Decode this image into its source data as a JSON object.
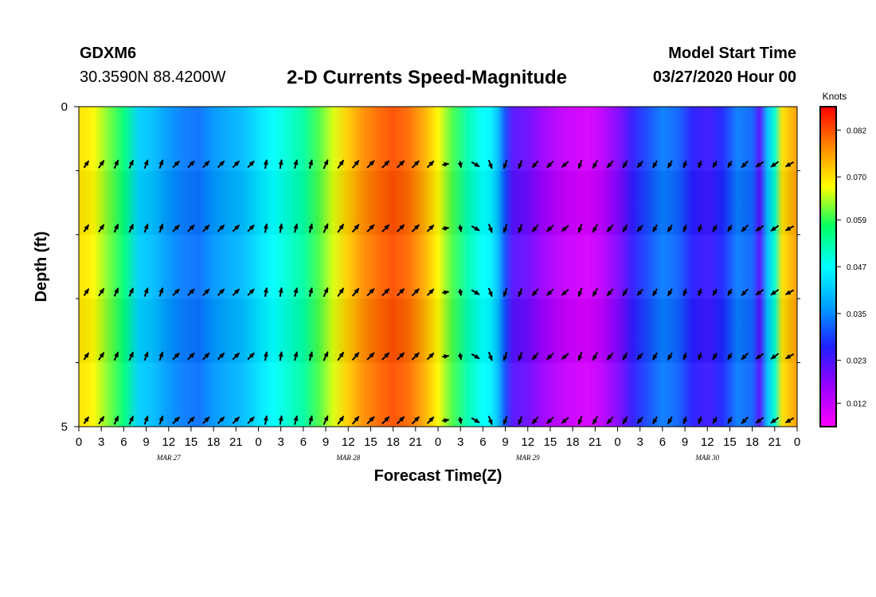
{
  "header": {
    "station": "GDXM6",
    "coords": "30.3590N 88.4200W",
    "title": "2-D Currents Speed-Magnitude",
    "model_start_label": "Model Start Time",
    "model_start_value": "03/27/2020 Hour 00"
  },
  "chart_data": {
    "type": "heatmap",
    "title": "2-D Currents Speed-Magnitude",
    "xlabel": "Forecast Time(Z)",
    "ylabel": "Depth (ft)",
    "x_ticks": [
      "0",
      "3",
      "6",
      "9",
      "12",
      "15",
      "18",
      "21",
      "0",
      "3",
      "6",
      "9",
      "12",
      "15",
      "18",
      "21",
      "0",
      "3",
      "6",
      "9",
      "12",
      "15",
      "18",
      "21",
      "0",
      "3",
      "6",
      "9",
      "12",
      "15",
      "18",
      "21",
      "0"
    ],
    "x_hours_range": [
      0,
      96
    ],
    "date_labels": [
      {
        "label": "MAR 27",
        "hour": 12
      },
      {
        "label": "MAR 28",
        "hour": 36
      },
      {
        "label": "MAR 29",
        "hour": 60
      },
      {
        "label": "MAR 30",
        "hour": 84
      }
    ],
    "y_ticks": [
      "0",
      "5"
    ],
    "ylim": [
      0,
      5
    ],
    "colorbar": {
      "unit": "Knots",
      "ticks": [
        "0.082",
        "0.070",
        "0.059",
        "0.047",
        "0.035",
        "0.023",
        "0.012"
      ],
      "tick_values": [
        0.082,
        0.07,
        0.059,
        0.047,
        0.035,
        0.023,
        0.012
      ],
      "range": [
        0.006,
        0.088
      ],
      "colors": [
        "#ff00ff",
        "#9b00ff",
        "#2020ff",
        "#00a0ff",
        "#00ffff",
        "#00ff66",
        "#ffff00",
        "#ff8800",
        "#ff0000"
      ]
    },
    "speed_by_hour": [
      [
        0,
        0.07
      ],
      [
        2,
        0.068
      ],
      [
        4,
        0.062
      ],
      [
        6,
        0.056
      ],
      [
        8,
        0.042
      ],
      [
        10,
        0.04
      ],
      [
        12,
        0.036
      ],
      [
        14,
        0.034
      ],
      [
        16,
        0.033
      ],
      [
        18,
        0.036
      ],
      [
        20,
        0.038
      ],
      [
        22,
        0.04
      ],
      [
        24,
        0.044
      ],
      [
        26,
        0.047
      ],
      [
        28,
        0.05
      ],
      [
        30,
        0.053
      ],
      [
        32,
        0.06
      ],
      [
        34,
        0.066
      ],
      [
        36,
        0.072
      ],
      [
        38,
        0.077
      ],
      [
        40,
        0.08
      ],
      [
        42,
        0.082
      ],
      [
        44,
        0.08
      ],
      [
        46,
        0.075
      ],
      [
        48,
        0.068
      ],
      [
        50,
        0.06
      ],
      [
        52,
        0.052
      ],
      [
        54,
        0.047
      ],
      [
        55,
        0.046
      ],
      [
        56,
        0.04
      ],
      [
        57,
        0.03
      ],
      [
        58,
        0.022
      ],
      [
        60,
        0.02
      ],
      [
        62,
        0.016
      ],
      [
        64,
        0.013
      ],
      [
        66,
        0.011
      ],
      [
        68,
        0.01
      ],
      [
        70,
        0.013
      ],
      [
        72,
        0.018
      ],
      [
        74,
        0.025
      ],
      [
        76,
        0.03
      ],
      [
        78,
        0.034
      ],
      [
        80,
        0.032
      ],
      [
        82,
        0.026
      ],
      [
        84,
        0.024
      ],
      [
        86,
        0.027
      ],
      [
        88,
        0.034
      ],
      [
        90,
        0.032
      ],
      [
        91,
        0.022
      ],
      [
        92,
        0.04
      ],
      [
        93,
        0.05
      ],
      [
        94,
        0.07
      ],
      [
        96,
        0.076
      ]
    ],
    "arrow_rows_depth_ft": [
      1,
      2,
      3,
      4,
      5
    ],
    "arrow_hours": [
      1,
      3,
      5,
      7,
      9,
      11,
      13,
      15,
      17,
      19,
      21,
      23,
      25,
      27,
      29,
      31,
      33,
      35,
      37,
      39,
      41,
      43,
      45,
      47,
      49,
      51,
      53,
      55,
      57,
      59,
      61,
      63,
      65,
      67,
      69,
      71,
      73,
      75,
      77,
      79,
      81,
      83,
      85,
      87,
      89,
      91,
      93,
      95
    ],
    "arrow_directions_deg": {
      "mar27": [
        35,
        35,
        25,
        25,
        20,
        20,
        45,
        45,
        45,
        45,
        45,
        45
      ],
      "mar28": [
        10,
        10,
        15,
        15,
        25,
        35,
        40,
        45,
        45,
        45,
        45,
        45
      ],
      "mar29": [
        80,
        170,
        120,
        160,
        200,
        200,
        220,
        225,
        230,
        200,
        210,
        220
      ],
      "mar30": [
        210,
        220,
        210,
        210,
        200,
        200,
        210,
        210,
        225,
        235,
        235,
        240
      ]
    },
    "arrow_lengths": [
      0.5,
      0.55,
      0.55,
      0.55,
      0.55,
      0.55,
      0.55,
      0.55,
      0.55,
      0.55,
      0.55,
      0.55,
      0.55,
      0.55,
      0.55,
      0.55,
      0.6,
      0.6,
      0.6,
      0.6,
      0.6,
      0.6,
      0.6,
      0.55,
      0.4,
      0.4,
      0.55,
      0.55,
      0.55,
      0.55,
      0.55,
      0.55,
      0.55,
      0.55,
      0.55,
      0.55,
      0.5,
      0.5,
      0.5,
      0.5,
      0.45,
      0.45,
      0.45,
      0.45,
      0.55,
      0.55,
      0.55,
      0.55
    ]
  }
}
